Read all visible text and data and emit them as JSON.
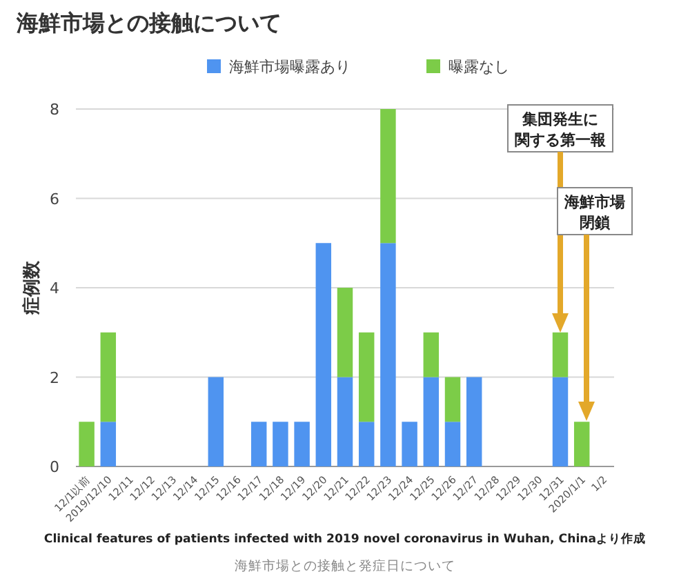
{
  "chart_data": {
    "type": "bar",
    "stacked": true,
    "title": "海鮮市場との接触について",
    "ylabel": "症例数",
    "categories": [
      "12/1以前",
      "2019/12/10",
      "12/11",
      "12/12",
      "12/13",
      "12/14",
      "12/15",
      "12/16",
      "12/17",
      "12/18",
      "12/19",
      "12/20",
      "12/21",
      "12/22",
      "12/23",
      "12/24",
      "12/25",
      "12/26",
      "12/27",
      "12/28",
      "12/29",
      "12/30",
      "12/31",
      "2020/1/1",
      "1/2"
    ],
    "series": [
      {
        "name": "海鮮市場曝露あり",
        "color": "#4f94f0",
        "values": [
          0,
          1,
          0,
          0,
          0,
          0,
          2,
          0,
          1,
          1,
          1,
          5,
          2,
          1,
          5,
          1,
          2,
          1,
          2,
          0,
          0,
          0,
          2,
          0,
          0
        ]
      },
      {
        "name": "曝露なし",
        "color": "#7ccc48",
        "values": [
          1,
          2,
          0,
          0,
          0,
          0,
          0,
          0,
          0,
          0,
          0,
          0,
          2,
          2,
          3,
          0,
          1,
          1,
          0,
          0,
          0,
          0,
          1,
          1,
          0
        ]
      }
    ],
    "ylim": [
      0,
      8
    ],
    "yticks": [
      0,
      2,
      4,
      6,
      8
    ],
    "grid": "y",
    "legend": "top",
    "annotations": [
      "Clinical features of patients infected with 2019 novel coronavirus in Wuhan, Chinaより作成",
      "海鮮市場との接触と発症日について",
      "集団発生に関する第一報",
      "海鮮市場閉鎖"
    ]
  }
}
